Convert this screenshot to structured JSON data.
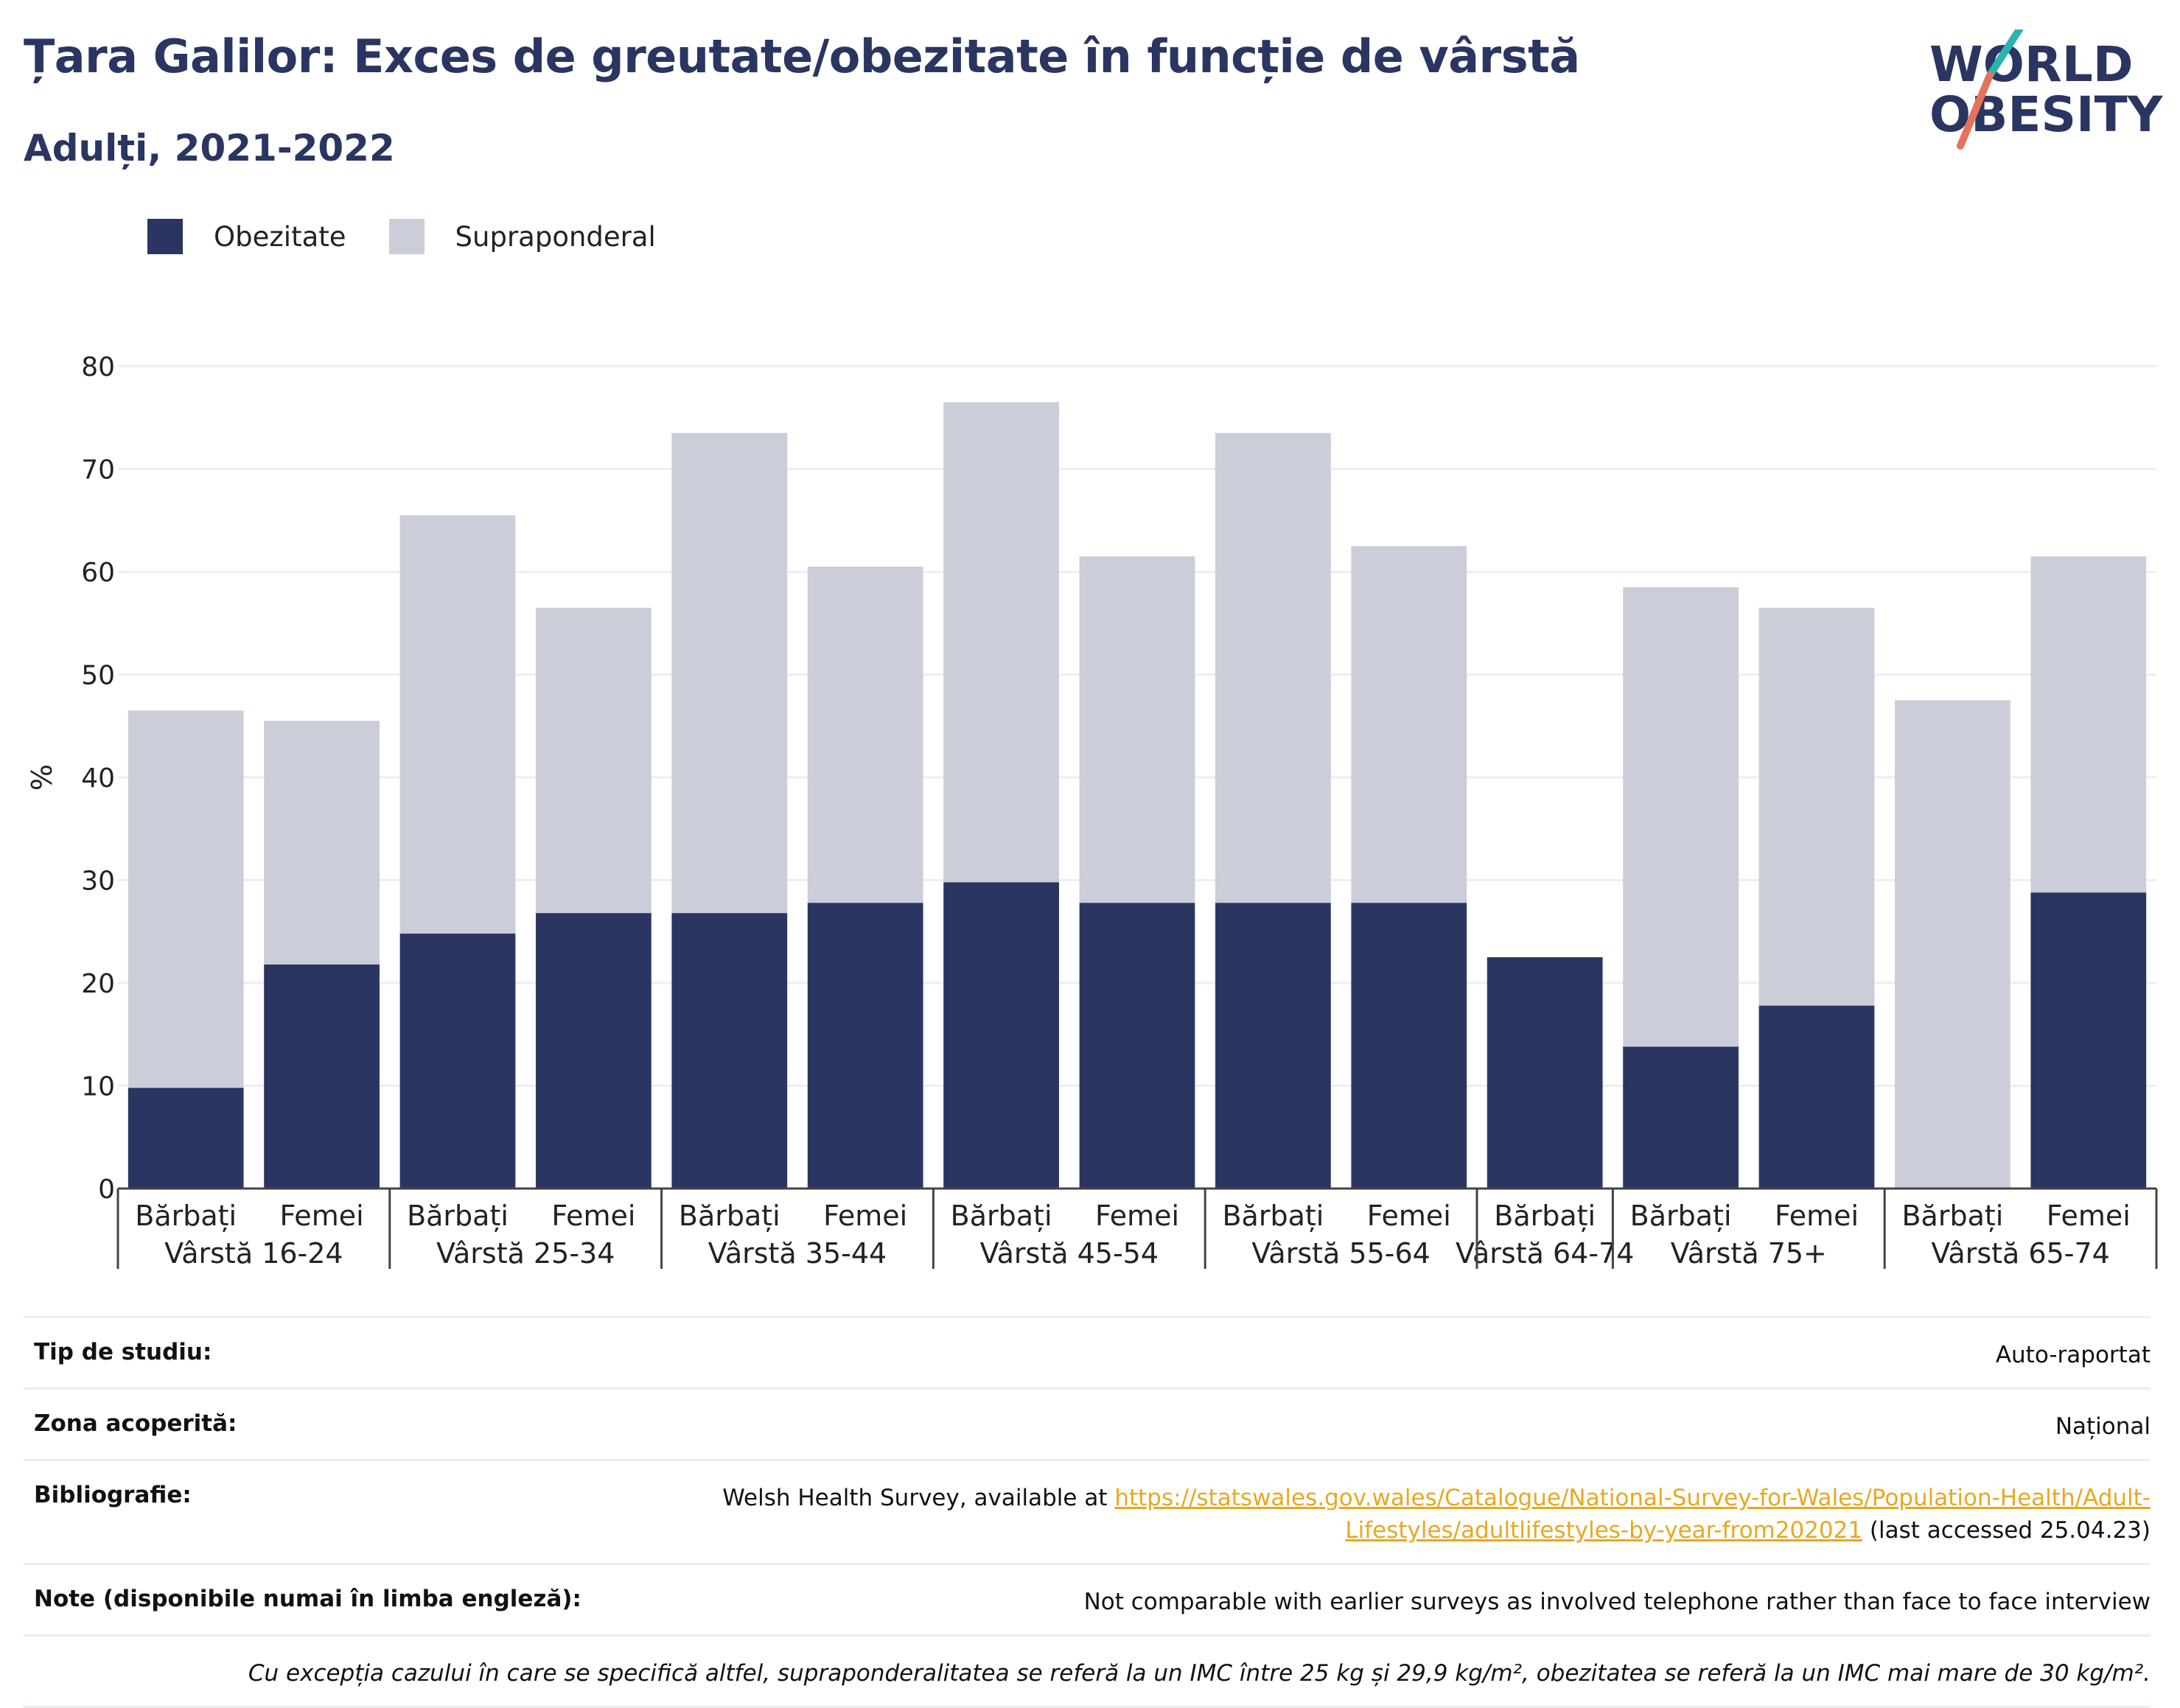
{
  "header": {
    "title": "Țara Galilor: Exces de greutate/obezitate în funcție de vârstă",
    "subtitle": "Adulți, 2021-2022",
    "logo_line1": "WORLD",
    "logo_line2": "OBESITY"
  },
  "legend": {
    "obesity": "Obezitate",
    "overweight": "Supraponderal"
  },
  "colors": {
    "obesity": "#2a3561",
    "overweight": "#cbcdd9",
    "grid": "#eceef4",
    "link": "#e8a820",
    "logo_teal": "#2bb3b1",
    "logo_coral": "#e5735c"
  },
  "chart_data": {
    "type": "bar",
    "stacked": true,
    "ylabel": "%",
    "ylim": [
      0,
      80
    ],
    "yticks": [
      0,
      10,
      20,
      30,
      40,
      50,
      60,
      70,
      80
    ],
    "grid": true,
    "legend_position": "top-left",
    "groups": [
      {
        "label": "Vârstă 16-24",
        "bars": [
          "Bărbați",
          "Femei"
        ]
      },
      {
        "label": "Vârstă 25-34",
        "bars": [
          "Bărbați",
          "Femei"
        ]
      },
      {
        "label": "Vârstă 35-44",
        "bars": [
          "Bărbați",
          "Femei"
        ]
      },
      {
        "label": "Vârstă 45-54",
        "bars": [
          "Bărbați",
          "Femei"
        ]
      },
      {
        "label": "Vârstă 55-64",
        "bars": [
          "Bărbați",
          "Femei"
        ]
      },
      {
        "label": "Vârstă 64-74",
        "bars": [
          "Bărbați"
        ]
      },
      {
        "label": "Vârstă 75+",
        "bars": [
          "Bărbați",
          "Femei"
        ]
      },
      {
        "label": "Vârstă 65-74",
        "bars": [
          "Bărbați",
          "Femei"
        ]
      }
    ],
    "series": [
      {
        "name": "Obezitate",
        "values": [
          9.8,
          21.8,
          24.8,
          26.8,
          26.8,
          27.8,
          29.8,
          27.8,
          27.8,
          27.8,
          22.5,
          13.8,
          17.8,
          0,
          28.8
        ]
      },
      {
        "name": "Supraponderal",
        "values": [
          36.7,
          23.7,
          40.7,
          29.7,
          46.7,
          32.7,
          46.7,
          33.7,
          45.7,
          34.7,
          0,
          44.7,
          38.7,
          47.5,
          32.7
        ]
      }
    ]
  },
  "info": {
    "study_type_label": "Tip de studiu:",
    "study_type_value": "Auto-raportat",
    "coverage_label": "Zona acoperită:",
    "coverage_value": "Național",
    "bibliography_label": "Bibliografie:",
    "bibliography_prefix": "Welsh Health Survey, available at ",
    "bibliography_link_1": "https://statswales.gov.wales/Catalogue/National-Survey-for-Wales/Population-Health/Adult-",
    "bibliography_link_2": "Lifestyles/adultlifestyles-by-year-from202021",
    "bibliography_suffix": " (last accessed 25.04.23)",
    "notes_label": "Note (disponibile numai în limba engleză):",
    "notes_value": "Not comparable with earlier surveys as involved telephone rather than face to face interview",
    "footnote": "Cu excepția cazului în care se specifică altfel, supraponderalitatea se referă la un IMC între 25 kg și 29,9 kg/m², obezitatea se referă la un IMC mai mare de 30 kg/m²."
  }
}
